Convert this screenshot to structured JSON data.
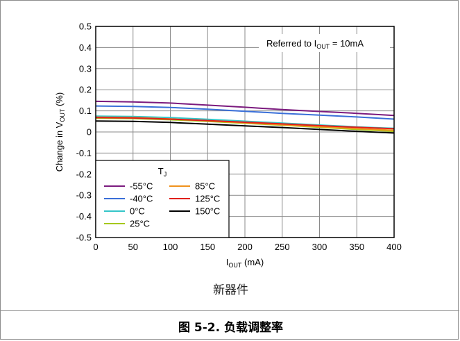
{
  "chart_data": {
    "type": "line",
    "xlabel_main": "I",
    "xlabel_sub": "OUT",
    "xlabel_unit": " (mA)",
    "ylabel_pre": "Change in V",
    "ylabel_sub": "OUT",
    "ylabel_unit": " (%)",
    "annotation_pre": "Referred to I",
    "annotation_sub": "OUT",
    "annotation_post": " = 10mA",
    "xlim": [
      0,
      400
    ],
    "ylim": [
      -0.5,
      0.5
    ],
    "x_ticks": [
      0,
      50,
      100,
      150,
      200,
      250,
      300,
      350,
      400
    ],
    "y_ticks": [
      0.5,
      0.4,
      0.3,
      0.2,
      0.1,
      0,
      -0.1,
      -0.2,
      -0.3,
      -0.4,
      -0.5
    ],
    "grid": true,
    "legend_title_main": "T",
    "legend_title_sub": "J",
    "legend_placement": "bottom-left",
    "series": [
      {
        "name": "-55°C",
        "color": "#7b1a7e",
        "x": [
          0,
          50,
          100,
          150,
          200,
          250,
          300,
          350,
          400
        ],
        "y": [
          0.145,
          0.142,
          0.137,
          0.127,
          0.117,
          0.106,
          0.097,
          0.088,
          0.078
        ]
      },
      {
        "name": "-40°C",
        "color": "#3a6fd8",
        "x": [
          0,
          50,
          100,
          150,
          200,
          250,
          300,
          350,
          400
        ],
        "y": [
          0.123,
          0.121,
          0.116,
          0.108,
          0.098,
          0.088,
          0.08,
          0.071,
          0.061
        ]
      },
      {
        "name": "0°C",
        "color": "#33c5c8",
        "x": [
          0,
          50,
          100,
          150,
          200,
          250,
          300,
          350,
          400
        ],
        "y": [
          0.075,
          0.073,
          0.068,
          0.06,
          0.051,
          0.042,
          0.033,
          0.024,
          0.017
        ]
      },
      {
        "name": "25°C",
        "color": "#a6c81c",
        "x": [
          0,
          50,
          100,
          150,
          200,
          250,
          300,
          350,
          400
        ],
        "y": [
          0.065,
          0.063,
          0.058,
          0.05,
          0.041,
          0.032,
          0.022,
          0.012,
          0.003
        ]
      },
      {
        "name": "85°C",
        "color": "#f0921c",
        "x": [
          0,
          50,
          100,
          150,
          200,
          250,
          300,
          350,
          400
        ],
        "y": [
          0.07,
          0.068,
          0.062,
          0.053,
          0.043,
          0.034,
          0.025,
          0.016,
          0.008
        ]
      },
      {
        "name": "125°C",
        "color": "#e0201b",
        "x": [
          0,
          50,
          100,
          150,
          200,
          250,
          300,
          350,
          400
        ],
        "y": [
          0.068,
          0.066,
          0.061,
          0.054,
          0.046,
          0.038,
          0.03,
          0.022,
          0.015
        ]
      },
      {
        "name": "150°C",
        "color": "#000000",
        "x": [
          0,
          50,
          100,
          150,
          200,
          250,
          300,
          350,
          400
        ],
        "y": [
          0.052,
          0.05,
          0.045,
          0.037,
          0.029,
          0.021,
          0.012,
          0.003,
          -0.005
        ]
      }
    ]
  },
  "watermark": "新器件",
  "caption": "图 5-2. 负载调整率"
}
